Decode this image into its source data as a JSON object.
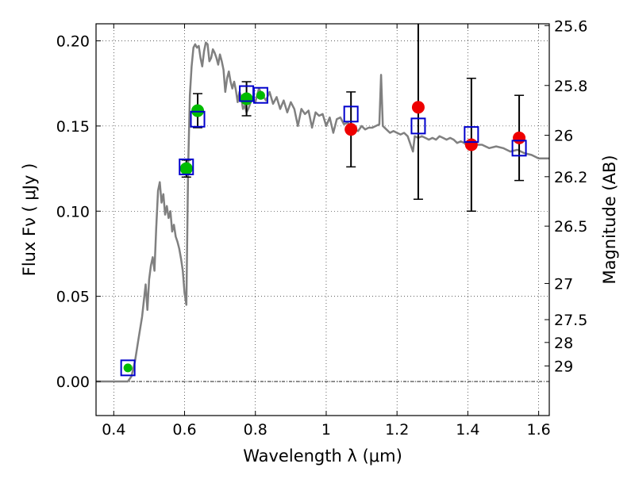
{
  "chart_data": {
    "type": "scatter",
    "title": "",
    "xlabel": "Wavelength  λ (μm)",
    "ylabel": "Flux  Fν  ( μJy )",
    "ylabel_right": "Magnitude (AB)",
    "xlim": [
      0.35,
      1.63
    ],
    "ylim": [
      -0.02,
      0.21
    ],
    "x_ticks": [
      0.4,
      0.6,
      0.8,
      1.0,
      1.2,
      1.4,
      1.6
    ],
    "x_tick_labels": [
      "0.4",
      "0.6",
      "0.8",
      "1",
      "1.2",
      "1.4",
      "1.6"
    ],
    "y_ticks": [
      0.0,
      0.05,
      0.1,
      0.15,
      0.2
    ],
    "y_tick_labels": [
      "0.00",
      "0.05",
      "0.10",
      "0.15",
      "0.20"
    ],
    "mag_ticks": [
      {
        "mag": 25.6,
        "label": "25.6"
      },
      {
        "mag": 25.8,
        "label": "25.8"
      },
      {
        "mag": 26.0,
        "label": "26"
      },
      {
        "mag": 26.2,
        "label": "26.2"
      },
      {
        "mag": 26.5,
        "label": "26.5"
      },
      {
        "mag": 27.0,
        "label": "27"
      },
      {
        "mag": 27.5,
        "label": "27.5"
      },
      {
        "mag": 28.0,
        "label": "28"
      },
      {
        "mag": 29.0,
        "label": "29"
      }
    ],
    "grid": true,
    "legend": "none",
    "colors": {
      "model": "#808080",
      "green": "#00bb00",
      "red": "#ee0000",
      "square": "#0000cc",
      "axis": "#000000"
    },
    "series": [
      {
        "style": "line",
        "points": [
          [
            0.35,
            0.0
          ],
          [
            0.44,
            0.0
          ],
          [
            0.45,
            0.003
          ],
          [
            0.46,
            0.012
          ],
          [
            0.47,
            0.025
          ],
          [
            0.48,
            0.038
          ],
          [
            0.49,
            0.057
          ],
          [
            0.495,
            0.042
          ],
          [
            0.5,
            0.06
          ],
          [
            0.505,
            0.068
          ],
          [
            0.51,
            0.073
          ],
          [
            0.515,
            0.065
          ],
          [
            0.52,
            0.09
          ],
          [
            0.525,
            0.112
          ],
          [
            0.53,
            0.117
          ],
          [
            0.535,
            0.105
          ],
          [
            0.54,
            0.11
          ],
          [
            0.545,
            0.098
          ],
          [
            0.55,
            0.103
          ],
          [
            0.555,
            0.096
          ],
          [
            0.56,
            0.1
          ],
          [
            0.565,
            0.088
          ],
          [
            0.57,
            0.092
          ],
          [
            0.575,
            0.085
          ],
          [
            0.58,
            0.082
          ],
          [
            0.585,
            0.078
          ],
          [
            0.59,
            0.072
          ],
          [
            0.595,
            0.065
          ],
          [
            0.6,
            0.052
          ],
          [
            0.605,
            0.045
          ],
          [
            0.61,
            0.125
          ],
          [
            0.615,
            0.168
          ],
          [
            0.62,
            0.185
          ],
          [
            0.625,
            0.196
          ],
          [
            0.63,
            0.198
          ],
          [
            0.635,
            0.196
          ],
          [
            0.64,
            0.197
          ],
          [
            0.645,
            0.19
          ],
          [
            0.65,
            0.185
          ],
          [
            0.655,
            0.194
          ],
          [
            0.66,
            0.199
          ],
          [
            0.665,
            0.198
          ],
          [
            0.67,
            0.188
          ],
          [
            0.675,
            0.19
          ],
          [
            0.68,
            0.195
          ],
          [
            0.685,
            0.193
          ],
          [
            0.69,
            0.19
          ],
          [
            0.695,
            0.186
          ],
          [
            0.7,
            0.192
          ],
          [
            0.705,
            0.188
          ],
          [
            0.71,
            0.183
          ],
          [
            0.715,
            0.17
          ],
          [
            0.72,
            0.178
          ],
          [
            0.725,
            0.182
          ],
          [
            0.73,
            0.176
          ],
          [
            0.735,
            0.172
          ],
          [
            0.74,
            0.176
          ],
          [
            0.745,
            0.171
          ],
          [
            0.75,
            0.164
          ],
          [
            0.755,
            0.17
          ],
          [
            0.76,
            0.167
          ],
          [
            0.765,
            0.16
          ],
          [
            0.77,
            0.162
          ],
          [
            0.775,
            0.158
          ],
          [
            0.78,
            0.16
          ],
          [
            0.785,
            0.163
          ],
          [
            0.79,
            0.167
          ],
          [
            0.8,
            0.164
          ],
          [
            0.81,
            0.172
          ],
          [
            0.82,
            0.168
          ],
          [
            0.83,
            0.165
          ],
          [
            0.84,
            0.17
          ],
          [
            0.85,
            0.163
          ],
          [
            0.86,
            0.167
          ],
          [
            0.87,
            0.16
          ],
          [
            0.88,
            0.165
          ],
          [
            0.89,
            0.158
          ],
          [
            0.9,
            0.164
          ],
          [
            0.91,
            0.16
          ],
          [
            0.92,
            0.15
          ],
          [
            0.93,
            0.16
          ],
          [
            0.94,
            0.157
          ],
          [
            0.95,
            0.159
          ],
          [
            0.96,
            0.149
          ],
          [
            0.97,
            0.158
          ],
          [
            0.98,
            0.156
          ],
          [
            0.99,
            0.157
          ],
          [
            1.0,
            0.15
          ],
          [
            1.01,
            0.155
          ],
          [
            1.02,
            0.146
          ],
          [
            1.03,
            0.154
          ],
          [
            1.04,
            0.155
          ],
          [
            1.05,
            0.151
          ],
          [
            1.06,
            0.152
          ],
          [
            1.07,
            0.15
          ],
          [
            1.08,
            0.148
          ],
          [
            1.09,
            0.147
          ],
          [
            1.1,
            0.15
          ],
          [
            1.11,
            0.148
          ],
          [
            1.12,
            0.149
          ],
          [
            1.13,
            0.149
          ],
          [
            1.14,
            0.15
          ],
          [
            1.15,
            0.151
          ],
          [
            1.155,
            0.18
          ],
          [
            1.16,
            0.15
          ],
          [
            1.17,
            0.148
          ],
          [
            1.18,
            0.146
          ],
          [
            1.19,
            0.147
          ],
          [
            1.2,
            0.146
          ],
          [
            1.21,
            0.145
          ],
          [
            1.22,
            0.146
          ],
          [
            1.23,
            0.144
          ],
          [
            1.24,
            0.138
          ],
          [
            1.245,
            0.135
          ],
          [
            1.25,
            0.144
          ],
          [
            1.26,
            0.143
          ],
          [
            1.27,
            0.144
          ],
          [
            1.28,
            0.143
          ],
          [
            1.29,
            0.142
          ],
          [
            1.3,
            0.143
          ],
          [
            1.31,
            0.142
          ],
          [
            1.32,
            0.144
          ],
          [
            1.33,
            0.143
          ],
          [
            1.34,
            0.142
          ],
          [
            1.35,
            0.143
          ],
          [
            1.36,
            0.142
          ],
          [
            1.37,
            0.14
          ],
          [
            1.38,
            0.141
          ],
          [
            1.39,
            0.14
          ],
          [
            1.4,
            0.138
          ],
          [
            1.42,
            0.139
          ],
          [
            1.44,
            0.139
          ],
          [
            1.46,
            0.137
          ],
          [
            1.48,
            0.138
          ],
          [
            1.5,
            0.137
          ],
          [
            1.52,
            0.135
          ],
          [
            1.54,
            0.136
          ],
          [
            1.56,
            0.134
          ],
          [
            1.58,
            0.133
          ],
          [
            1.6,
            0.131
          ],
          [
            1.63,
            0.131
          ]
        ]
      },
      {
        "style": "markers",
        "marker": "circle",
        "color": "green",
        "points": [
          [
            0.605,
            0.125,
            0.005
          ],
          [
            0.637,
            0.159,
            0.01
          ],
          [
            0.775,
            0.166,
            0.01
          ],
          [
            0.815,
            0.168,
            0.0
          ],
          [
            0.44,
            0.008,
            0.0
          ]
        ]
      },
      {
        "style": "markers",
        "marker": "circle",
        "color": "red",
        "points": [
          [
            1.07,
            0.148,
            0.022
          ],
          [
            1.26,
            0.161,
            0.054
          ],
          [
            1.41,
            0.139,
            0.039
          ],
          [
            1.545,
            0.143,
            0.025
          ]
        ]
      },
      {
        "style": "markers",
        "marker": "square",
        "color": "square",
        "points": [
          [
            0.44,
            0.008
          ],
          [
            0.605,
            0.126
          ],
          [
            0.637,
            0.154
          ],
          [
            0.775,
            0.169
          ],
          [
            0.815,
            0.168
          ],
          [
            1.07,
            0.157
          ],
          [
            1.26,
            0.15
          ],
          [
            1.41,
            0.145
          ],
          [
            1.545,
            0.137
          ]
        ]
      }
    ]
  }
}
